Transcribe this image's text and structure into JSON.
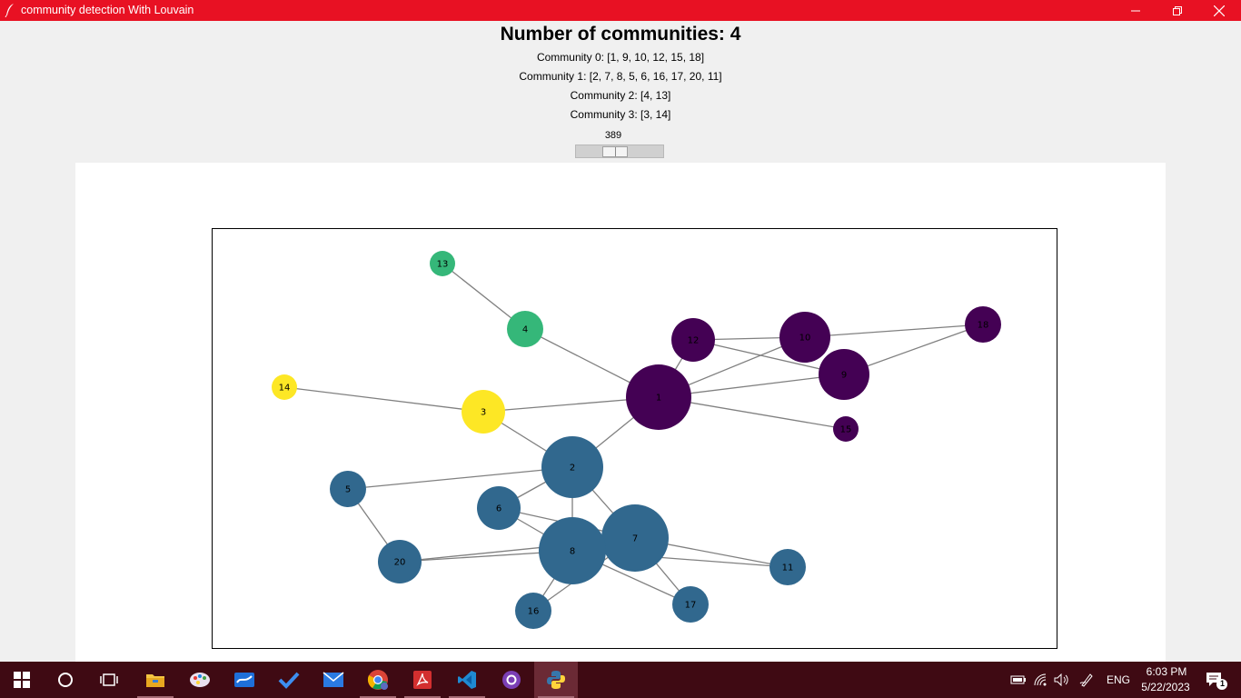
{
  "window": {
    "title": "community detection With Louvain"
  },
  "header": {
    "title": "Number of communities: 4",
    "communities": [
      "Community 0: [1, 9, 10, 12, 15, 18]",
      "Community 1: [2, 7, 8, 5, 6, 16, 17, 20, 11]",
      "Community 2: [4, 13]",
      "Community 3: [3, 14]"
    ]
  },
  "slider": {
    "value": "389",
    "fraction": 0.42
  },
  "graph": {
    "colors": {
      "community_0": "#440154",
      "community_1": "#31688e",
      "community_2": "#35b779",
      "community_3": "#fde725",
      "edge": "#808080"
    },
    "nodes": [
      {
        "id": "1",
        "label": "1",
        "community": 0
      },
      {
        "id": "2",
        "label": "2",
        "community": 1
      },
      {
        "id": "3",
        "label": "3",
        "community": 3
      },
      {
        "id": "4",
        "label": "4",
        "community": 2
      },
      {
        "id": "5",
        "label": "5",
        "community": 1
      },
      {
        "id": "6",
        "label": "6",
        "community": 1
      },
      {
        "id": "7",
        "label": "7",
        "community": 1
      },
      {
        "id": "8",
        "label": "8",
        "community": 1
      },
      {
        "id": "9",
        "label": "9",
        "community": 0
      },
      {
        "id": "10",
        "label": "10",
        "community": 0
      },
      {
        "id": "11",
        "label": "11",
        "community": 1
      },
      {
        "id": "12",
        "label": "12",
        "community": 0
      },
      {
        "id": "13",
        "label": "13",
        "community": 2
      },
      {
        "id": "14",
        "label": "14",
        "community": 3
      },
      {
        "id": "15",
        "label": "15",
        "community": 0
      },
      {
        "id": "16",
        "label": "16",
        "community": 1
      },
      {
        "id": "17",
        "label": "17",
        "community": 1
      },
      {
        "id": "18",
        "label": "18",
        "community": 0
      },
      {
        "id": "20",
        "label": "20",
        "community": 1
      }
    ],
    "edges": [
      [
        "13",
        "4"
      ],
      [
        "4",
        "1"
      ],
      [
        "14",
        "3"
      ],
      [
        "3",
        "1"
      ],
      [
        "3",
        "2"
      ],
      [
        "1",
        "2"
      ],
      [
        "1",
        "12"
      ],
      [
        "1",
        "10"
      ],
      [
        "1",
        "9"
      ],
      [
        "1",
        "15"
      ],
      [
        "12",
        "10"
      ],
      [
        "12",
        "9"
      ],
      [
        "10",
        "18"
      ],
      [
        "9",
        "18"
      ],
      [
        "2",
        "5"
      ],
      [
        "2",
        "6"
      ],
      [
        "2",
        "8"
      ],
      [
        "2",
        "7"
      ],
      [
        "5",
        "20"
      ],
      [
        "6",
        "8"
      ],
      [
        "6",
        "7"
      ],
      [
        "20",
        "8"
      ],
      [
        "20",
        "7"
      ],
      [
        "8",
        "16"
      ],
      [
        "8",
        "17"
      ],
      [
        "8",
        "11"
      ],
      [
        "7",
        "16"
      ],
      [
        "7",
        "17"
      ],
      [
        "7",
        "11"
      ]
    ]
  },
  "taskbar": {
    "apps": [
      {
        "name": "start",
        "icon": "windows-logo-icon"
      },
      {
        "name": "search",
        "icon": "search-circle-icon"
      },
      {
        "name": "task-view",
        "icon": "task-view-icon"
      },
      {
        "name": "file-explorer",
        "icon": "folder-icon"
      },
      {
        "name": "paint",
        "icon": "palette-icon"
      },
      {
        "name": "whiteboard",
        "icon": "whiteboard-icon"
      },
      {
        "name": "todo",
        "icon": "checkmark-icon"
      },
      {
        "name": "mail",
        "icon": "mail-icon"
      },
      {
        "name": "chrome",
        "icon": "chrome-icon"
      },
      {
        "name": "acrobat",
        "icon": "pdf-icon"
      },
      {
        "name": "vscode",
        "icon": "vscode-icon"
      },
      {
        "name": "github-desktop",
        "icon": "github-icon"
      },
      {
        "name": "python",
        "icon": "python-icon"
      }
    ],
    "tray": {
      "language": "ENG",
      "time": "6:03 PM",
      "date": "5/22/2023",
      "notification_count": "1"
    }
  }
}
